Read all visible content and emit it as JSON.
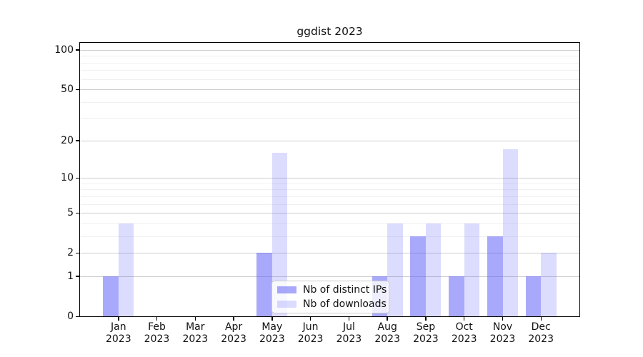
{
  "title": "ggdist 2023",
  "chart_data": {
    "type": "bar",
    "title": "ggdist 2023",
    "categories": [
      "Jan 2023",
      "Feb 2023",
      "Mar 2023",
      "Apr 2023",
      "May 2023",
      "Jun 2023",
      "Jul 2023",
      "Aug 2023",
      "Sep 2023",
      "Oct 2023",
      "Nov 2023",
      "Dec 2023"
    ],
    "series": [
      {
        "name": "Nb of distinct IPs",
        "color": "rgba(90,90,248,0.52)",
        "values": [
          1,
          0,
          0,
          0,
          2,
          0,
          0,
          1,
          3,
          1,
          3,
          1
        ]
      },
      {
        "name": "Nb of downloads",
        "color": "rgba(90,90,248,0.21)",
        "values": [
          4,
          0,
          0,
          0,
          16,
          0,
          0,
          4,
          4,
          4,
          17,
          2
        ]
      }
    ],
    "xlabel": "",
    "ylabel": "",
    "yscale": "log1p",
    "ylim": [
      0,
      113
    ],
    "yticks": [
      0,
      1,
      2,
      5,
      10,
      20,
      50,
      100
    ],
    "yticks_minor": [
      3,
      4,
      6,
      7,
      8,
      9,
      30,
      40,
      60,
      70,
      80,
      90
    ],
    "grid": {
      "axis": "y",
      "major_color": "#cdcdcd",
      "minor_color": "#f0f0f0"
    },
    "legend_position": "inside-bottom-center"
  }
}
